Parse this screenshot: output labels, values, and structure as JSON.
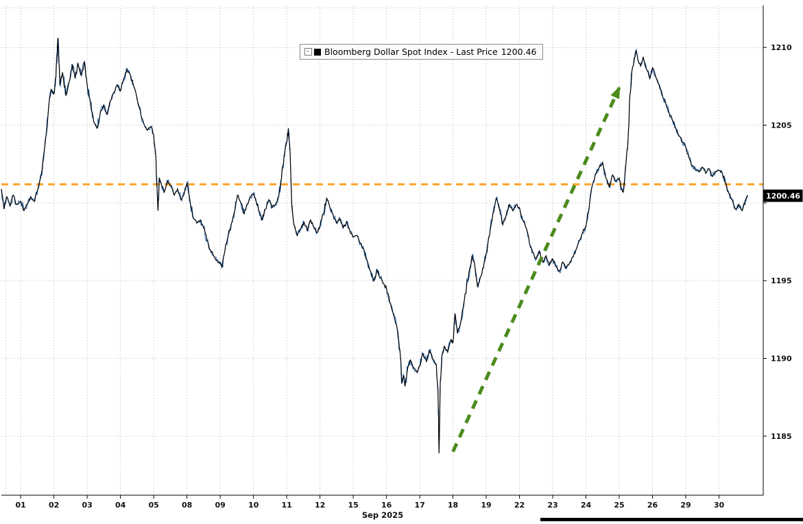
{
  "page": {
    "background": "#ffffff"
  },
  "legend": {
    "label": "Bloomberg Dollar Spot Index - Last Price",
    "value": "1200.46",
    "swatch_color": "#000000"
  },
  "badge": {
    "text": "1200.46",
    "bg": "#000000",
    "fg": "#ffffff"
  },
  "chart_data": {
    "type": "line",
    "title": "Bloomberg Dollar Spot Index - Last Price",
    "xlabel": "Sep 2025",
    "ylabel": "",
    "last_price": 1200.46,
    "x_ticks": [
      "01",
      "02",
      "03",
      "04",
      "05",
      "08",
      "09",
      "10",
      "11",
      "12",
      "15",
      "16",
      "17",
      "18",
      "19",
      "22",
      "23",
      "24",
      "25",
      "26",
      "29",
      "30"
    ],
    "y_ticks": [
      1185,
      1190,
      1195,
      1200,
      1205,
      1210
    ],
    "y_tick_labels_shown": [
      1185,
      1190,
      1195,
      1205,
      1210
    ],
    "day_range": [
      -0.58,
      22.33
    ],
    "price_range": [
      1181.2,
      1212.7
    ],
    "extra_hlines": [
      1212.55
    ],
    "extra_vlines": [
      -0.45
    ],
    "grid_color": "#b5b5b5",
    "axis_color": "#000000",
    "reference_line": {
      "value": 1201.2,
      "color": "#ffa226",
      "style": "dashed",
      "width": 3
    },
    "annotation_arrow": {
      "from": {
        "day": 13.0,
        "price": 1184.0
      },
      "to": {
        "day": 18.0,
        "price": 1207.4
      },
      "color": "#4b8b1d",
      "style": "dashed",
      "width": 5
    },
    "series": [
      {
        "name": "Bloomberg Dollar Spot Index",
        "color": "#000000",
        "shadow_color": "#2e6db4",
        "points": [
          [
            -0.58,
            1200.9
          ],
          [
            -0.5,
            1199.6
          ],
          [
            -0.42,
            1200.4
          ],
          [
            -0.32,
            1199.8
          ],
          [
            -0.22,
            1200.5
          ],
          [
            -0.12,
            1199.9
          ],
          [
            0.0,
            1200.1
          ],
          [
            0.1,
            1199.5
          ],
          [
            0.2,
            1199.9
          ],
          [
            0.3,
            1200.4
          ],
          [
            0.42,
            1200.1
          ],
          [
            0.52,
            1200.9
          ],
          [
            0.62,
            1201.8
          ],
          [
            0.72,
            1203.5
          ],
          [
            0.82,
            1205.6
          ],
          [
            0.92,
            1207.3
          ],
          [
            1.0,
            1207.0
          ],
          [
            1.06,
            1208.1
          ],
          [
            1.12,
            1210.6
          ],
          [
            1.18,
            1207.6
          ],
          [
            1.26,
            1208.4
          ],
          [
            1.36,
            1206.9
          ],
          [
            1.46,
            1207.8
          ],
          [
            1.56,
            1208.9
          ],
          [
            1.64,
            1208.0
          ],
          [
            1.72,
            1209.0
          ],
          [
            1.82,
            1208.2
          ],
          [
            1.92,
            1209.1
          ],
          [
            2.0,
            1207.6
          ],
          [
            2.1,
            1206.4
          ],
          [
            2.2,
            1205.2
          ],
          [
            2.3,
            1204.8
          ],
          [
            2.4,
            1205.9
          ],
          [
            2.5,
            1206.3
          ],
          [
            2.6,
            1205.7
          ],
          [
            2.7,
            1206.6
          ],
          [
            2.8,
            1207.1
          ],
          [
            2.9,
            1207.6
          ],
          [
            3.0,
            1207.2
          ],
          [
            3.1,
            1208.0
          ],
          [
            3.2,
            1208.6
          ],
          [
            3.3,
            1208.2
          ],
          [
            3.42,
            1207.4
          ],
          [
            3.52,
            1206.5
          ],
          [
            3.62,
            1205.6
          ],
          [
            3.72,
            1205.0
          ],
          [
            3.82,
            1204.7
          ],
          [
            3.92,
            1204.9
          ],
          [
            4.0,
            1204.4
          ],
          [
            4.06,
            1203.1
          ],
          [
            4.1,
            1201.0
          ],
          [
            4.13,
            1199.5
          ],
          [
            4.17,
            1201.6
          ],
          [
            4.24,
            1201.1
          ],
          [
            4.32,
            1200.7
          ],
          [
            4.42,
            1201.4
          ],
          [
            4.52,
            1201.1
          ],
          [
            4.62,
            1200.5
          ],
          [
            4.72,
            1200.9
          ],
          [
            4.82,
            1200.2
          ],
          [
            4.92,
            1200.6
          ],
          [
            5.0,
            1201.3
          ],
          [
            5.1,
            1200.0
          ],
          [
            5.2,
            1199.0
          ],
          [
            5.3,
            1198.7
          ],
          [
            5.4,
            1198.9
          ],
          [
            5.5,
            1198.4
          ],
          [
            5.6,
            1197.6
          ],
          [
            5.7,
            1197.0
          ],
          [
            5.8,
            1196.6
          ],
          [
            5.9,
            1196.3
          ],
          [
            6.0,
            1196.1
          ],
          [
            6.06,
            1195.9
          ],
          [
            6.14,
            1196.9
          ],
          [
            6.24,
            1197.9
          ],
          [
            6.34,
            1198.7
          ],
          [
            6.44,
            1199.5
          ],
          [
            6.52,
            1200.5
          ],
          [
            6.62,
            1200.0
          ],
          [
            6.72,
            1199.3
          ],
          [
            6.82,
            1199.9
          ],
          [
            6.92,
            1200.4
          ],
          [
            7.0,
            1200.6
          ],
          [
            7.08,
            1200.1
          ],
          [
            7.16,
            1199.5
          ],
          [
            7.26,
            1198.9
          ],
          [
            7.36,
            1199.6
          ],
          [
            7.46,
            1200.2
          ],
          [
            7.56,
            1199.7
          ],
          [
            7.66,
            1199.9
          ],
          [
            7.76,
            1200.4
          ],
          [
            7.84,
            1201.5
          ],
          [
            7.92,
            1203.0
          ],
          [
            8.0,
            1203.9
          ],
          [
            8.05,
            1204.8
          ],
          [
            8.1,
            1203.4
          ],
          [
            8.15,
            1199.9
          ],
          [
            8.22,
            1198.6
          ],
          [
            8.32,
            1197.9
          ],
          [
            8.42,
            1198.3
          ],
          [
            8.52,
            1198.8
          ],
          [
            8.62,
            1198.2
          ],
          [
            8.72,
            1198.9
          ],
          [
            8.82,
            1198.4
          ],
          [
            8.92,
            1198.1
          ],
          [
            9.0,
            1198.5
          ],
          [
            9.1,
            1199.3
          ],
          [
            9.2,
            1200.3
          ],
          [
            9.3,
            1199.7
          ],
          [
            9.4,
            1199.2
          ],
          [
            9.5,
            1198.7
          ],
          [
            9.6,
            1199.0
          ],
          [
            9.7,
            1198.4
          ],
          [
            9.8,
            1198.8
          ],
          [
            9.9,
            1198.2
          ],
          [
            10.0,
            1197.8
          ],
          [
            10.12,
            1197.9
          ],
          [
            10.22,
            1197.4
          ],
          [
            10.32,
            1197.0
          ],
          [
            10.42,
            1196.3
          ],
          [
            10.52,
            1195.6
          ],
          [
            10.62,
            1195.0
          ],
          [
            10.72,
            1195.7
          ],
          [
            10.82,
            1195.2
          ],
          [
            10.92,
            1194.8
          ],
          [
            11.0,
            1194.5
          ],
          [
            11.1,
            1193.6
          ],
          [
            11.2,
            1192.9
          ],
          [
            11.3,
            1192.2
          ],
          [
            11.36,
            1191.3
          ],
          [
            11.42,
            1190.1
          ],
          [
            11.46,
            1188.4
          ],
          [
            11.52,
            1188.9
          ],
          [
            11.56,
            1188.2
          ],
          [
            11.64,
            1189.4
          ],
          [
            11.72,
            1189.9
          ],
          [
            11.82,
            1189.4
          ],
          [
            11.92,
            1189.1
          ],
          [
            12.0,
            1189.5
          ],
          [
            12.1,
            1190.3
          ],
          [
            12.2,
            1189.8
          ],
          [
            12.3,
            1190.5
          ],
          [
            12.4,
            1189.9
          ],
          [
            12.5,
            1189.6
          ],
          [
            12.55,
            1188.0
          ],
          [
            12.58,
            1183.9
          ],
          [
            12.62,
            1188.6
          ],
          [
            12.67,
            1190.2
          ],
          [
            12.74,
            1190.8
          ],
          [
            12.84,
            1190.4
          ],
          [
            12.94,
            1191.2
          ],
          [
            13.0,
            1191.0
          ],
          [
            13.06,
            1192.9
          ],
          [
            13.14,
            1191.6
          ],
          [
            13.24,
            1192.4
          ],
          [
            13.34,
            1193.7
          ],
          [
            13.44,
            1195.0
          ],
          [
            13.52,
            1195.9
          ],
          [
            13.58,
            1196.6
          ],
          [
            13.66,
            1195.9
          ],
          [
            13.74,
            1194.6
          ],
          [
            13.84,
            1195.3
          ],
          [
            13.94,
            1196.2
          ],
          [
            14.0,
            1196.7
          ],
          [
            14.1,
            1197.9
          ],
          [
            14.2,
            1199.3
          ],
          [
            14.3,
            1200.3
          ],
          [
            14.4,
            1199.6
          ],
          [
            14.5,
            1198.6
          ],
          [
            14.6,
            1199.2
          ],
          [
            14.7,
            1199.9
          ],
          [
            14.8,
            1199.5
          ],
          [
            14.9,
            1199.9
          ],
          [
            15.0,
            1199.7
          ],
          [
            15.1,
            1198.9
          ],
          [
            15.2,
            1198.4
          ],
          [
            15.3,
            1197.4
          ],
          [
            15.4,
            1196.8
          ],
          [
            15.5,
            1196.4
          ],
          [
            15.6,
            1196.9
          ],
          [
            15.7,
            1196.2
          ],
          [
            15.8,
            1196.6
          ],
          [
            15.9,
            1196.0
          ],
          [
            16.0,
            1196.4
          ],
          [
            16.1,
            1195.9
          ],
          [
            16.2,
            1195.6
          ],
          [
            16.3,
            1196.2
          ],
          [
            16.4,
            1195.8
          ],
          [
            16.5,
            1196.1
          ],
          [
            16.6,
            1196.5
          ],
          [
            16.7,
            1197.0
          ],
          [
            16.8,
            1197.6
          ],
          [
            16.9,
            1198.1
          ],
          [
            17.0,
            1198.5
          ],
          [
            17.1,
            1199.8
          ],
          [
            17.2,
            1201.2
          ],
          [
            17.3,
            1201.9
          ],
          [
            17.4,
            1202.3
          ],
          [
            17.5,
            1202.6
          ],
          [
            17.6,
            1201.6
          ],
          [
            17.7,
            1201.0
          ],
          [
            17.8,
            1201.8
          ],
          [
            17.9,
            1201.4
          ],
          [
            18.0,
            1201.6
          ],
          [
            18.06,
            1200.9
          ],
          [
            18.12,
            1200.7
          ],
          [
            18.2,
            1202.5
          ],
          [
            18.26,
            1203.8
          ],
          [
            18.32,
            1206.9
          ],
          [
            18.4,
            1208.7
          ],
          [
            18.5,
            1209.8
          ],
          [
            18.56,
            1209.2
          ],
          [
            18.64,
            1208.8
          ],
          [
            18.72,
            1209.4
          ],
          [
            18.82,
            1208.6
          ],
          [
            18.92,
            1208.0
          ],
          [
            19.0,
            1208.7
          ],
          [
            19.1,
            1208.1
          ],
          [
            19.2,
            1207.6
          ],
          [
            19.3,
            1206.9
          ],
          [
            19.4,
            1206.4
          ],
          [
            19.5,
            1205.8
          ],
          [
            19.6,
            1205.3
          ],
          [
            19.7,
            1204.8
          ],
          [
            19.8,
            1204.3
          ],
          [
            19.9,
            1203.9
          ],
          [
            20.0,
            1203.6
          ],
          [
            20.1,
            1202.9
          ],
          [
            20.2,
            1202.4
          ],
          [
            20.3,
            1202.1
          ],
          [
            20.4,
            1202.0
          ],
          [
            20.5,
            1202.3
          ],
          [
            20.6,
            1201.9
          ],
          [
            20.7,
            1202.2
          ],
          [
            20.8,
            1201.7
          ],
          [
            20.9,
            1202.0
          ],
          [
            21.0,
            1202.1
          ],
          [
            21.1,
            1201.9
          ],
          [
            21.2,
            1201.3
          ],
          [
            21.3,
            1200.6
          ],
          [
            21.4,
            1200.2
          ],
          [
            21.5,
            1199.6
          ],
          [
            21.6,
            1199.9
          ],
          [
            21.7,
            1199.5
          ],
          [
            21.8,
            1200.2
          ],
          [
            21.86,
            1200.5
          ]
        ]
      }
    ]
  }
}
